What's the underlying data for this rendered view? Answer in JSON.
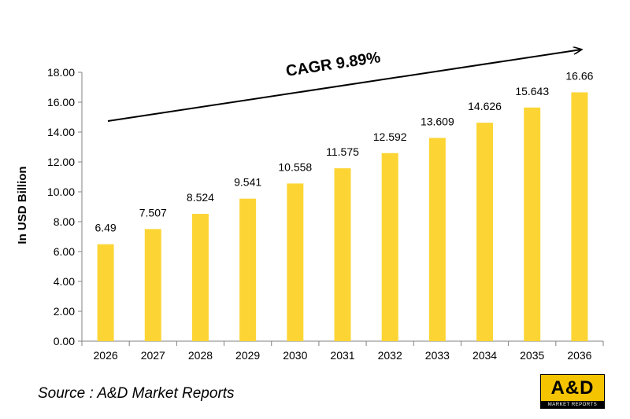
{
  "chart_data": {
    "type": "bar",
    "categories": [
      "2026",
      "2027",
      "2028",
      "2029",
      "2030",
      "2031",
      "2032",
      "2033",
      "2034",
      "2035",
      "2036"
    ],
    "values": [
      6.49,
      7.507,
      8.524,
      9.541,
      10.558,
      11.575,
      12.592,
      13.609,
      14.626,
      15.643,
      16.66
    ],
    "value_labels": [
      "6.49",
      "7.507",
      "8.524",
      "9.541",
      "10.558",
      "11.575",
      "12.592",
      "13.609",
      "14.626",
      "15.643",
      "16.66"
    ],
    "ylabel": "In USD Billion",
    "xlabel": "",
    "ylim": [
      0,
      18
    ],
    "y_ticks": [
      "0.00",
      "2.00",
      "4.00",
      "6.00",
      "8.00",
      "10.00",
      "12.00",
      "14.00",
      "16.00",
      "18.00"
    ],
    "annotation": "CAGR 9.89%",
    "bar_color": "#fcd535",
    "grid": false,
    "legend": "none"
  },
  "source": "Source : A&D Market Reports",
  "logo": {
    "text": "A&D",
    "subtext": "MARKET REPORTS",
    "colors": {
      "background": "#f5c400",
      "band": "#000000"
    }
  }
}
